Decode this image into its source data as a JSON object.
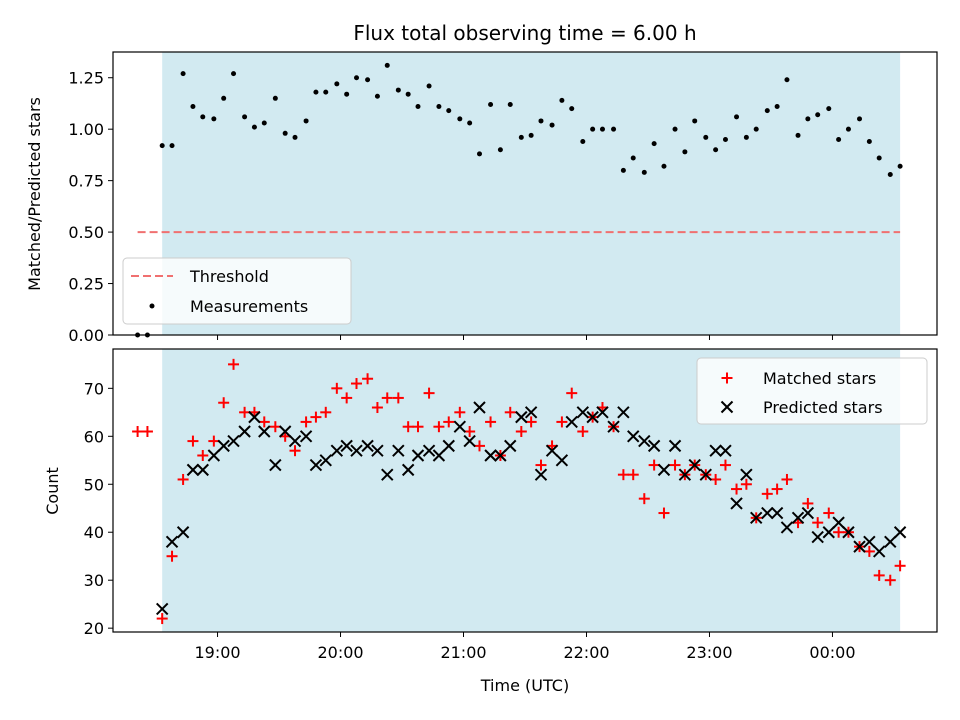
{
  "chart_data": [
    {
      "type": "scatter",
      "title": "Flux total observing time = 6.00 h",
      "ylabel": "Matched/Predicted stars",
      "xlabel": "",
      "xlim": [
        18.15,
        24.85
      ],
      "ylim": [
        0.0,
        1.375
      ],
      "yticks": [
        "0.00",
        "0.25",
        "0.50",
        "0.75",
        "1.00",
        "1.25"
      ],
      "ytick_values": [
        0.0,
        0.25,
        0.5,
        0.75,
        1.0,
        1.25
      ],
      "shaded_range": [
        18.55,
        24.55
      ],
      "shade_color": "#add8e6",
      "legend_position": "lower-left",
      "threshold": {
        "name": "Threshold",
        "value": 0.5,
        "x_range": [
          18.35,
          24.55
        ],
        "color": "#f07070"
      },
      "series": [
        {
          "name": "Measurements",
          "color": "#000000",
          "x": [
            18.35,
            18.43,
            18.55,
            18.63,
            18.72,
            18.8,
            18.88,
            18.97,
            19.05,
            19.13,
            19.22,
            19.3,
            19.38,
            19.47,
            19.55,
            19.63,
            19.72,
            19.8,
            19.88,
            19.97,
            20.05,
            20.13,
            20.22,
            20.3,
            20.38,
            20.47,
            20.55,
            20.63,
            20.72,
            20.8,
            20.88,
            20.97,
            21.05,
            21.13,
            21.22,
            21.3,
            21.38,
            21.47,
            21.55,
            21.63,
            21.72,
            21.8,
            21.88,
            21.97,
            22.05,
            22.13,
            22.22,
            22.3,
            22.38,
            22.47,
            22.55,
            22.63,
            22.72,
            22.8,
            22.88,
            22.97,
            23.05,
            23.13,
            23.22,
            23.3,
            23.38,
            23.47,
            23.55,
            23.63,
            23.72,
            23.8,
            23.88,
            23.97,
            24.05,
            24.13,
            24.22,
            24.3,
            24.38,
            24.47,
            24.55
          ],
          "y": [
            0.0,
            0.0,
            0.92,
            0.92,
            1.27,
            1.11,
            1.06,
            1.05,
            1.15,
            1.27,
            1.06,
            1.01,
            1.03,
            1.15,
            0.98,
            0.96,
            1.04,
            1.18,
            1.18,
            1.22,
            1.17,
            1.25,
            1.24,
            1.16,
            1.31,
            1.19,
            1.17,
            1.11,
            1.21,
            1.11,
            1.09,
            1.05,
            1.03,
            0.88,
            1.12,
            0.9,
            1.12,
            0.96,
            0.97,
            1.04,
            1.02,
            1.14,
            1.1,
            0.94,
            1.0,
            1.0,
            1.0,
            0.8,
            0.86,
            0.79,
            0.93,
            0.82,
            1.0,
            0.89,
            1.04,
            0.96,
            0.9,
            0.95,
            1.06,
            0.96,
            1.0,
            1.09,
            1.11,
            1.24,
            0.97,
            1.05,
            1.07,
            1.1,
            0.95,
            1.0,
            1.05,
            0.94,
            0.86,
            0.78,
            0.82
          ]
        }
      ]
    },
    {
      "type": "scatter",
      "title": "",
      "ylabel": "Count",
      "xlabel": "Time (UTC)",
      "xlim": [
        18.15,
        24.85
      ],
      "ylim": [
        19.2,
        78.2
      ],
      "yticks": [
        "20",
        "30",
        "40",
        "50",
        "60",
        "70"
      ],
      "ytick_values": [
        20,
        30,
        40,
        50,
        60,
        70
      ],
      "xticks": [
        "19:00",
        "20:00",
        "21:00",
        "22:00",
        "23:00",
        "00:00"
      ],
      "xtick_values": [
        19,
        20,
        21,
        22,
        23,
        24
      ],
      "shaded_range": [
        18.55,
        24.55
      ],
      "shade_color": "#add8e6",
      "legend_position": "top-right",
      "series": [
        {
          "name": "Matched stars",
          "color": "#ff0000",
          "marker": "plus",
          "x": [
            18.35,
            18.43,
            18.55,
            18.63,
            18.72,
            18.8,
            18.88,
            18.97,
            19.05,
            19.13,
            19.22,
            19.3,
            19.38,
            19.47,
            19.55,
            19.63,
            19.72,
            19.8,
            19.88,
            19.97,
            20.05,
            20.13,
            20.22,
            20.3,
            20.38,
            20.47,
            20.55,
            20.63,
            20.72,
            20.8,
            20.88,
            20.97,
            21.05,
            21.13,
            21.22,
            21.3,
            21.38,
            21.47,
            21.55,
            21.63,
            21.72,
            21.8,
            21.88,
            21.97,
            22.05,
            22.13,
            22.22,
            22.3,
            22.38,
            22.47,
            22.55,
            22.63,
            22.72,
            22.8,
            22.88,
            22.97,
            23.05,
            23.13,
            23.22,
            23.3,
            23.38,
            23.47,
            23.55,
            23.63,
            23.72,
            23.8,
            23.88,
            23.97,
            24.05,
            24.13,
            24.22,
            24.3,
            24.38,
            24.47,
            24.55
          ],
          "y": [
            61,
            61,
            22,
            35,
            51,
            59,
            56,
            59,
            67,
            75,
            65,
            65,
            63,
            62,
            60,
            57,
            63,
            64,
            65,
            70,
            68,
            71,
            72,
            66,
            68,
            68,
            62,
            62,
            69,
            62,
            63,
            65,
            61,
            58,
            63,
            56,
            65,
            61,
            63,
            54,
            58,
            63,
            69,
            61,
            64,
            66,
            62,
            52,
            52,
            47,
            54,
            44,
            54,
            52,
            54,
            52,
            51,
            54,
            49,
            50,
            43,
            48,
            49,
            51,
            42,
            46,
            42,
            44,
            40,
            40,
            37,
            36,
            31,
            30,
            33
          ]
        },
        {
          "name": "Predicted stars",
          "color": "#000000",
          "marker": "x",
          "x": [
            18.55,
            18.63,
            18.72,
            18.8,
            18.88,
            18.97,
            19.05,
            19.13,
            19.22,
            19.3,
            19.38,
            19.47,
            19.55,
            19.63,
            19.72,
            19.8,
            19.88,
            19.97,
            20.05,
            20.13,
            20.22,
            20.3,
            20.38,
            20.47,
            20.55,
            20.63,
            20.72,
            20.8,
            20.88,
            20.97,
            21.05,
            21.13,
            21.22,
            21.3,
            21.38,
            21.47,
            21.55,
            21.63,
            21.72,
            21.8,
            21.88,
            21.97,
            22.05,
            22.13,
            22.22,
            22.3,
            22.38,
            22.47,
            22.55,
            22.63,
            22.72,
            22.8,
            22.88,
            22.97,
            23.05,
            23.13,
            23.22,
            23.3,
            23.38,
            23.47,
            23.55,
            23.63,
            23.72,
            23.8,
            23.88,
            23.97,
            24.05,
            24.13,
            24.22,
            24.3,
            24.38,
            24.47,
            24.55
          ],
          "y": [
            24,
            38,
            40,
            53,
            53,
            56,
            58,
            59,
            61,
            64,
            61,
            54,
            61,
            59,
            60,
            54,
            55,
            57,
            58,
            57,
            58,
            57,
            52,
            57,
            53,
            56,
            57,
            56,
            58,
            62,
            59,
            66,
            56,
            56,
            58,
            64,
            65,
            52,
            57,
            55,
            63,
            65,
            64,
            65,
            62,
            65,
            60,
            59,
            58,
            53,
            58,
            52,
            54,
            52,
            57,
            57,
            46,
            52,
            43,
            44,
            44,
            41,
            43,
            44,
            39,
            40,
            42,
            40,
            37,
            38,
            36,
            38,
            40
          ]
        }
      ]
    }
  ]
}
